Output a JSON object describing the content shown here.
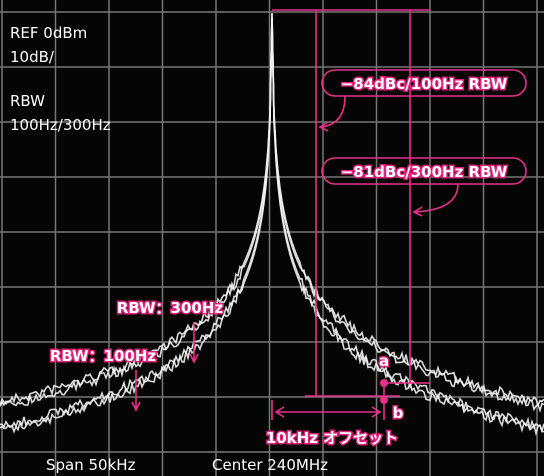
{
  "header": {
    "ref": "REF 0dBm",
    "scale": "10dB/",
    "rbw_label": "RBW",
    "rbw_values": "100Hz/300Hz"
  },
  "annotations": {
    "label_100": "−84dBc/100Hz RBW",
    "label_300": "−81dBc/300Hz RBW",
    "trace_300": "RBW：300Hz",
    "trace_100": "RBW：100Hz",
    "point_a": "a",
    "point_b": "b",
    "offset": "10kHz オフセット"
  },
  "footer": {
    "span": "Span 50kHz",
    "center": "Center 240MHz"
  }
}
